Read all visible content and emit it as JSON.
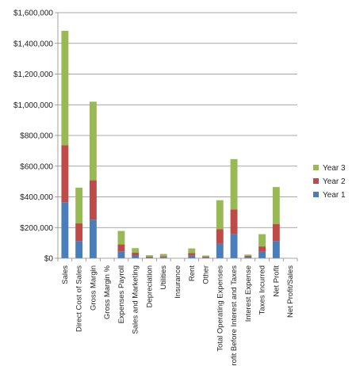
{
  "chart_data": {
    "type": "bar",
    "stacked": true,
    "categories": [
      "Sales",
      "Direct Cost of Sales",
      "Gross Margin",
      "Gross Margin %",
      "Expenses Payroll",
      "Sales and Marketing",
      "Depreciation",
      "Utilities",
      "Insurance",
      "Rent",
      "Other",
      "Total Operating Expenses",
      "Profit Before Interest and Taxes",
      "Interest Expense",
      "Taxes Incurred",
      "Net Profit",
      "Net Profit/Sales"
    ],
    "series": [
      {
        "name": "Year 1",
        "color": "#4a7ebb",
        "values": [
          365000,
          112000,
          252000,
          0,
          45000,
          18000,
          5000,
          7000,
          0,
          17000,
          5000,
          95000,
          158000,
          8000,
          42000,
          112000,
          0
        ]
      },
      {
        "name": "Year 2",
        "color": "#be4b48",
        "values": [
          372000,
          115000,
          256000,
          0,
          45000,
          18000,
          5000,
          7000,
          0,
          17000,
          5000,
          95000,
          160000,
          8000,
          35000,
          110000,
          0
        ]
      },
      {
        "name": "Year 3",
        "color": "#98b954",
        "values": [
          745000,
          233000,
          512000,
          0,
          88000,
          30000,
          10000,
          14000,
          0,
          30000,
          8000,
          188000,
          328000,
          8000,
          80000,
          242000,
          0
        ]
      }
    ],
    "title": "",
    "xlabel": "",
    "ylabel": "",
    "ylim": [
      0,
      1600000
    ],
    "yticks": [
      0,
      200000,
      400000,
      600000,
      800000,
      1000000,
      1200000,
      1400000,
      1600000
    ],
    "ytick_labels": [
      "$0",
      "$200,000",
      "$400,000",
      "$600,000",
      "$800,000",
      "$1,000,000",
      "$1,200,000",
      "$1,400,000",
      "$1,600,000"
    ],
    "grid": true,
    "legend_position": "right",
    "legend_order": [
      "Year 3",
      "Year 2",
      "Year 1"
    ]
  }
}
